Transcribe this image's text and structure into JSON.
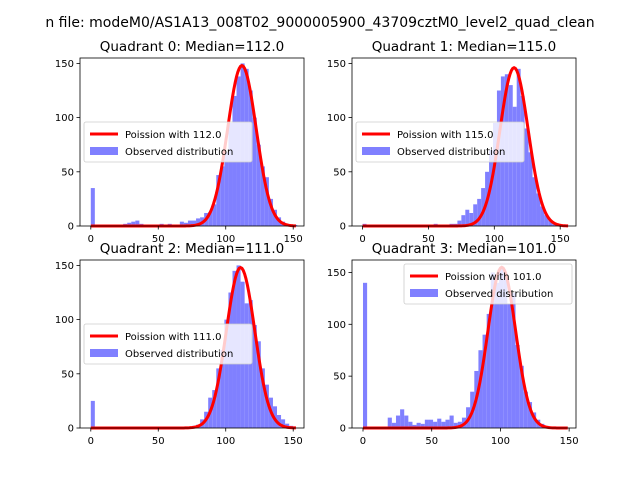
{
  "suptitle": "n file: modeM0/AS1A13_008T02_9000005900_43709cztM0_level2_quad_clean",
  "colors": {
    "hist": "#8080ff",
    "curve": "#ff0000"
  },
  "chart_data": [
    {
      "type": "bar",
      "title": "Quadrant 0: Median=112.0",
      "xlim": [
        -8,
        158
      ],
      "ylim": [
        0,
        155
      ],
      "xticks": [
        0,
        50,
        100,
        150
      ],
      "yticks": [
        0,
        50,
        100,
        150
      ],
      "legend_loc": "center-left",
      "legend": [
        "Poission with 112.0",
        "Observed distribution"
      ],
      "bin_width": 3,
      "hist_x": [
        0,
        24,
        27,
        30,
        33,
        36,
        45,
        51,
        57,
        60,
        66,
        69,
        72,
        75,
        78,
        81,
        84,
        87,
        90,
        93,
        96,
        99,
        102,
        105,
        108,
        111,
        114,
        117,
        120,
        123,
        126,
        129,
        132,
        135,
        138,
        141,
        144,
        147,
        150
      ],
      "hist_y": [
        35,
        2,
        3,
        4,
        5,
        2,
        1,
        2,
        2,
        1,
        4,
        3,
        5,
        5,
        7,
        8,
        12,
        13,
        20,
        47,
        55,
        68,
        95,
        120,
        138,
        150,
        145,
        125,
        100,
        75,
        55,
        45,
        25,
        15,
        8,
        4,
        2,
        1,
        1
      ],
      "poisson_mean": 112.0,
      "poisson_scale": 148
    },
    {
      "type": "bar",
      "title": "Quadrant 1: Median=115.0",
      "xlim": [
        -8,
        162
      ],
      "ylim": [
        0,
        155
      ],
      "xticks": [
        0,
        50,
        100,
        150
      ],
      "yticks": [
        0,
        50,
        100,
        150
      ],
      "legend_loc": "center-left",
      "legend": [
        "Poission with 115.0",
        "Observed distribution"
      ],
      "bin_width": 3,
      "hist_x": [
        0,
        30,
        33,
        36,
        39,
        45,
        51,
        54,
        57,
        60,
        66,
        69,
        72,
        75,
        78,
        81,
        84,
        87,
        90,
        93,
        96,
        99,
        102,
        105,
        108,
        111,
        114,
        117,
        120,
        123,
        126,
        129,
        132,
        135,
        138,
        141,
        144,
        147
      ],
      "hist_y": [
        2,
        1,
        1,
        1,
        1,
        1,
        1,
        2,
        1,
        1,
        2,
        2,
        5,
        10,
        15,
        12,
        20,
        25,
        35,
        50,
        70,
        95,
        125,
        138,
        140,
        130,
        110,
        145,
        120,
        90,
        68,
        45,
        30,
        18,
        10,
        5,
        2,
        1
      ],
      "poisson_mean": 115.0,
      "poisson_scale": 146
    },
    {
      "type": "bar",
      "title": "Quadrant 2: Median=111.0",
      "xlim": [
        -8,
        158
      ],
      "ylim": [
        0,
        155
      ],
      "xticks": [
        0,
        50,
        100,
        150
      ],
      "yticks": [
        0,
        50,
        100,
        150
      ],
      "legend_loc": "center-left",
      "legend": [
        "Poission with 111.0",
        "Observed distribution"
      ],
      "bin_width": 3,
      "hist_x": [
        0,
        24,
        27,
        30,
        33,
        45,
        54,
        57,
        63,
        69,
        75,
        78,
        81,
        84,
        87,
        90,
        93,
        96,
        99,
        102,
        105,
        108,
        111,
        114,
        117,
        120,
        123,
        126,
        129,
        132,
        135,
        138,
        141,
        144,
        147
      ],
      "hist_y": [
        25,
        1,
        1,
        1,
        1,
        1,
        1,
        1,
        1,
        1,
        2,
        3,
        8,
        15,
        28,
        35,
        55,
        72,
        100,
        125,
        145,
        150,
        135,
        115,
        118,
        95,
        80,
        55,
        40,
        28,
        20,
        12,
        8,
        4,
        2
      ],
      "poisson_mean": 111.0,
      "poisson_scale": 148
    },
    {
      "type": "bar",
      "title": "Quadrant 3: Median=101.0",
      "xlim": [
        -8,
        155
      ],
      "ylim": [
        0,
        162
      ],
      "xticks": [
        0,
        50,
        100,
        150
      ],
      "yticks": [
        0,
        50,
        100,
        150
      ],
      "legend_loc": "top-right",
      "legend": [
        "Poission with 101.0",
        "Observed distribution"
      ],
      "bin_width": 3,
      "hist_x": [
        0,
        18,
        21,
        24,
        27,
        30,
        33,
        36,
        39,
        42,
        45,
        48,
        51,
        54,
        57,
        60,
        63,
        66,
        69,
        72,
        75,
        78,
        81,
        84,
        87,
        90,
        93,
        96,
        99,
        102,
        105,
        108,
        111,
        114,
        117,
        120,
        123,
        126,
        129,
        132,
        135,
        138,
        141
      ],
      "hist_y": [
        140,
        10,
        5,
        12,
        18,
        12,
        6,
        3,
        5,
        4,
        8,
        8,
        6,
        9,
        6,
        8,
        12,
        5,
        6,
        10,
        20,
        35,
        55,
        75,
        90,
        110,
        150,
        140,
        155,
        150,
        120,
        130,
        80,
        60,
        35,
        25,
        15,
        8,
        4,
        2,
        1,
        1,
        1
      ],
      "poisson_mean": 101.0,
      "poisson_scale": 155
    }
  ]
}
